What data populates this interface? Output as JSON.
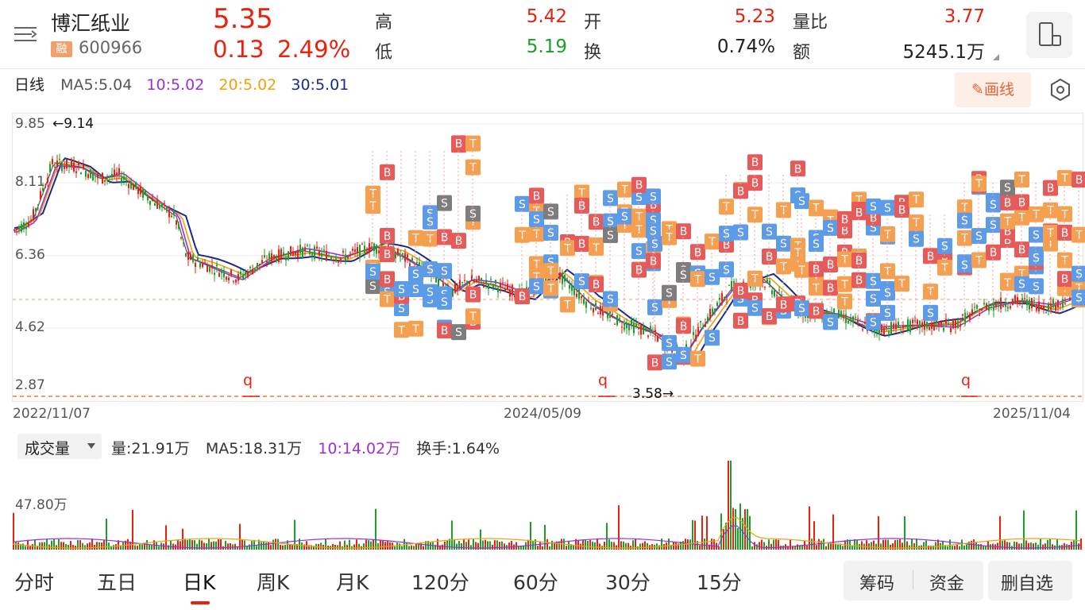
{
  "header": {
    "name": "博汇纸业",
    "rong": "融",
    "code": "600966",
    "price": "5.35",
    "change": "0.13",
    "change_pct": "2.49%",
    "high_label": "高",
    "high": "5.42",
    "low_label": "低",
    "low": "5.19",
    "open_label": "开",
    "open": "5.23",
    "turnover_label": "换",
    "turnover": "0.74%",
    "ratio_label": "量比",
    "ratio": "3.77",
    "amount_label": "额",
    "amount": "5245.1万"
  },
  "indicators": {
    "kind": "日线",
    "ma5": "MA5:5.04",
    "ma10": "10:5.02",
    "ma20": "20:5.02",
    "ma30": "30:5.01"
  },
  "draw_button": "✎画线",
  "axis": {
    "y_ticks": [
      "9.85",
      "8.11",
      "6.36",
      "4.62",
      "2.87"
    ],
    "dates": [
      "2022/11/07",
      "2024/05/09",
      "2025/11/04"
    ],
    "max_marker": "←9.14",
    "min_marker": "3.58→",
    "q_label": "q"
  },
  "volume": {
    "selector": "成交量",
    "vol": "量:21.91万",
    "ma5": "MA5:18.31万",
    "ma10": "10:14.02万",
    "turnover": "换手:1.64%",
    "y_label": "47.80万"
  },
  "tabs": [
    "分时",
    "五日",
    "日K",
    "周K",
    "月K",
    "120分",
    "60分",
    "30分",
    "15分"
  ],
  "active_tab": "日K",
  "buttons": {
    "chips": "筹码",
    "funds": "资金",
    "remove_watch": "删自选"
  },
  "colors": {
    "up": "#e8220f",
    "down": "#1b9e2a",
    "ma5": "#555555",
    "ma10": "#9b30d9",
    "ma20": "#f2a10a",
    "ma30": "#1a2a8c",
    "buy_tag": "#e65a5a",
    "sell_tag": "#5b9be8",
    "t_tag": "#f5a050",
    "grey_tag": "#7d7d7d"
  },
  "chart_data": {
    "type": "candlestick",
    "x_range": [
      "2022/11/07",
      "2025/11/04"
    ],
    "y_ticks": [
      9.85,
      8.11,
      6.36,
      4.62,
      2.87
    ],
    "max_price": 9.14,
    "min_price": 3.58,
    "last_close": 5.35,
    "volume_y_label": "47.80万",
    "moving_averages": {
      "MA5": 5.04,
      "MA10": 5.02,
      "MA20": 5.02,
      "MA30": 5.01
    }
  }
}
